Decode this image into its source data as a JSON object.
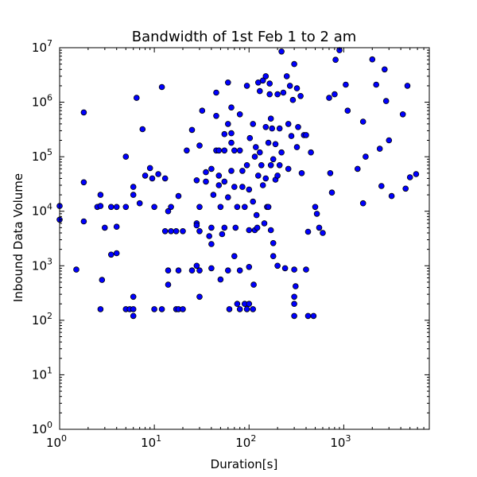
{
  "chart_data": {
    "type": "scatter",
    "title": "Bandwidth of 1st Feb 1 to 2 am",
    "xlabel": "Duration[s]",
    "ylabel": "Inbound Data Volume",
    "xscale": "log",
    "yscale": "log",
    "xlim": [
      1,
      8000
    ],
    "ylim": [
      1,
      10000000
    ],
    "x_ticks": [
      {
        "base": "10",
        "exp": "0"
      },
      {
        "base": "10",
        "exp": "1"
      },
      {
        "base": "10",
        "exp": "2"
      },
      {
        "base": "10",
        "exp": "3"
      }
    ],
    "y_ticks": [
      {
        "base": "10",
        "exp": "0"
      },
      {
        "base": "10",
        "exp": "1"
      },
      {
        "base": "10",
        "exp": "2"
      },
      {
        "base": "10",
        "exp": "3"
      },
      {
        "base": "10",
        "exp": "4"
      },
      {
        "base": "10",
        "exp": "5"
      },
      {
        "base": "10",
        "exp": "6"
      },
      {
        "base": "10",
        "exp": "7"
      }
    ],
    "grid": false,
    "marker_color": "#0000ff",
    "points": [
      [
        1,
        12500
      ],
      [
        1,
        7000
      ],
      [
        1.5,
        850
      ],
      [
        1.8,
        34000
      ],
      [
        1.8,
        650000
      ],
      [
        1.8,
        6500
      ],
      [
        2.5,
        12000
      ],
      [
        2.7,
        20000
      ],
      [
        2.7,
        12500
      ],
      [
        2.7,
        160
      ],
      [
        2.8,
        550
      ],
      [
        3,
        5000
      ],
      [
        3.5,
        12000
      ],
      [
        3.5,
        1600
      ],
      [
        4,
        12000
      ],
      [
        4,
        5200
      ],
      [
        4,
        1700
      ],
      [
        5,
        12000
      ],
      [
        5,
        100000
      ],
      [
        5,
        160
      ],
      [
        5.5,
        160
      ],
      [
        6,
        160
      ],
      [
        6,
        20000
      ],
      [
        6,
        28000
      ],
      [
        6,
        270
      ],
      [
        6,
        120
      ],
      [
        6.5,
        1200000
      ],
      [
        7,
        14000
      ],
      [
        7.5,
        320000
      ],
      [
        8,
        45000
      ],
      [
        9,
        62000
      ],
      [
        9.5,
        40000
      ],
      [
        10,
        12000
      ],
      [
        10,
        160
      ],
      [
        11,
        48000
      ],
      [
        12,
        1900000
      ],
      [
        12,
        160
      ],
      [
        13,
        40000
      ],
      [
        13,
        4300
      ],
      [
        14,
        10000
      ],
      [
        14,
        820
      ],
      [
        14,
        450
      ],
      [
        15,
        12000
      ],
      [
        15,
        4300
      ],
      [
        17,
        4300
      ],
      [
        17,
        160
      ],
      [
        18,
        19000
      ],
      [
        18,
        820
      ],
      [
        18,
        160
      ],
      [
        20,
        4300
      ],
      [
        20,
        160
      ],
      [
        22,
        130000
      ],
      [
        25,
        310000
      ],
      [
        25,
        820
      ],
      [
        28,
        37000
      ],
      [
        28,
        6000
      ],
      [
        28,
        5500
      ],
      [
        28,
        1000
      ],
      [
        30,
        270
      ],
      [
        30,
        4300
      ],
      [
        30,
        820
      ],
      [
        30,
        12000
      ],
      [
        30,
        160000
      ],
      [
        32,
        700000
      ],
      [
        35,
        52000
      ],
      [
        35,
        35000
      ],
      [
        38,
        3500
      ],
      [
        40,
        2500
      ],
      [
        40,
        5000
      ],
      [
        40,
        900
      ],
      [
        40,
        60000
      ],
      [
        42,
        20000
      ],
      [
        45,
        130000
      ],
      [
        45,
        1500000
      ],
      [
        45,
        560000
      ],
      [
        48,
        30000
      ],
      [
        48,
        130000
      ],
      [
        48,
        45000
      ],
      [
        50,
        560
      ],
      [
        50,
        12000
      ],
      [
        52,
        3800
      ],
      [
        55,
        260000
      ],
      [
        55,
        130000
      ],
      [
        55,
        35000
      ],
      [
        55,
        5000
      ],
      [
        60,
        400000
      ],
      [
        60,
        820
      ],
      [
        60,
        18000
      ],
      [
        60,
        2300000
      ],
      [
        62,
        160
      ],
      [
        65,
        270000
      ],
      [
        65,
        800000
      ],
      [
        65,
        180000
      ],
      [
        65,
        55000
      ],
      [
        70,
        130000
      ],
      [
        70,
        28000
      ],
      [
        70,
        1500
      ],
      [
        72,
        5000
      ],
      [
        75,
        200
      ],
      [
        75,
        12000
      ],
      [
        80,
        130000
      ],
      [
        80,
        820
      ],
      [
        80,
        600000
      ],
      [
        80,
        160
      ],
      [
        85,
        55000
      ],
      [
        85,
        28000
      ],
      [
        90,
        12000
      ],
      [
        90,
        200
      ],
      [
        95,
        160
      ],
      [
        95,
        2000000
      ],
      [
        95,
        70000
      ],
      [
        100,
        25000
      ],
      [
        100,
        4500
      ],
      [
        100,
        200
      ],
      [
        100,
        950
      ],
      [
        102,
        220000
      ],
      [
        110,
        160
      ],
      [
        110,
        15000
      ],
      [
        110,
        400000
      ],
      [
        112,
        450
      ],
      [
        115,
        100000
      ],
      [
        115,
        4500
      ],
      [
        118,
        150000
      ],
      [
        120,
        8500
      ],
      [
        122,
        5000
      ],
      [
        125,
        2300000
      ],
      [
        125,
        45000
      ],
      [
        130,
        1600000
      ],
      [
        130,
        120000
      ],
      [
        135,
        70000
      ],
      [
        140,
        2500000
      ],
      [
        140,
        30000
      ],
      [
        145,
        6000
      ],
      [
        150,
        3000000
      ],
      [
        150,
        350000
      ],
      [
        150,
        40000
      ],
      [
        155,
        12000
      ],
      [
        160,
        180000
      ],
      [
        160,
        12000
      ],
      [
        165,
        2200000
      ],
      [
        165,
        1400000
      ],
      [
        170,
        500000
      ],
      [
        170,
        70000
      ],
      [
        170,
        4500
      ],
      [
        175,
        330000
      ],
      [
        180,
        90000
      ],
      [
        180,
        2600
      ],
      [
        180,
        1500
      ],
      [
        190,
        170000
      ],
      [
        190,
        38000
      ],
      [
        200,
        1400000
      ],
      [
        200,
        45000
      ],
      [
        200,
        1000
      ],
      [
        210,
        330000
      ],
      [
        210,
        70000
      ],
      [
        220,
        8500000
      ],
      [
        220,
        120000
      ],
      [
        230,
        1500000
      ],
      [
        240,
        900
      ],
      [
        250,
        3000000
      ],
      [
        260,
        400000
      ],
      [
        260,
        60000
      ],
      [
        270,
        2000000
      ],
      [
        280,
        240000
      ],
      [
        290,
        1100000
      ],
      [
        300,
        5000000
      ],
      [
        300,
        200
      ],
      [
        300,
        120
      ],
      [
        300,
        270
      ],
      [
        300,
        850
      ],
      [
        310,
        420
      ],
      [
        320,
        1800000
      ],
      [
        320,
        150000
      ],
      [
        330,
        350000
      ],
      [
        350,
        1300000
      ],
      [
        360,
        50000
      ],
      [
        380,
        250000
      ],
      [
        400,
        850
      ],
      [
        400,
        250000
      ],
      [
        420,
        4200
      ],
      [
        420,
        120
      ],
      [
        450,
        120000
      ],
      [
        480,
        120
      ],
      [
        500,
        12000
      ],
      [
        520,
        9000
      ],
      [
        550,
        5000
      ],
      [
        600,
        4000
      ],
      [
        700,
        1200000
      ],
      [
        720,
        50000
      ],
      [
        750,
        22000
      ],
      [
        800,
        1400000
      ],
      [
        820,
        6000000
      ],
      [
        900,
        9000000
      ],
      [
        1050,
        2100000
      ],
      [
        1100,
        700000
      ],
      [
        1400,
        60000
      ],
      [
        1600,
        440000
      ],
      [
        1600,
        14000
      ],
      [
        1700,
        100000
      ],
      [
        2000,
        6100000
      ],
      [
        2200,
        2100000
      ],
      [
        2400,
        140000
      ],
      [
        2500,
        29000
      ],
      [
        2700,
        4000000
      ],
      [
        2800,
        1050000
      ],
      [
        3000,
        200000
      ],
      [
        3200,
        19000
      ],
      [
        4200,
        600000
      ],
      [
        4500,
        26000
      ],
      [
        4700,
        2000000
      ],
      [
        5000,
        42000
      ],
      [
        5800,
        48000
      ]
    ]
  }
}
